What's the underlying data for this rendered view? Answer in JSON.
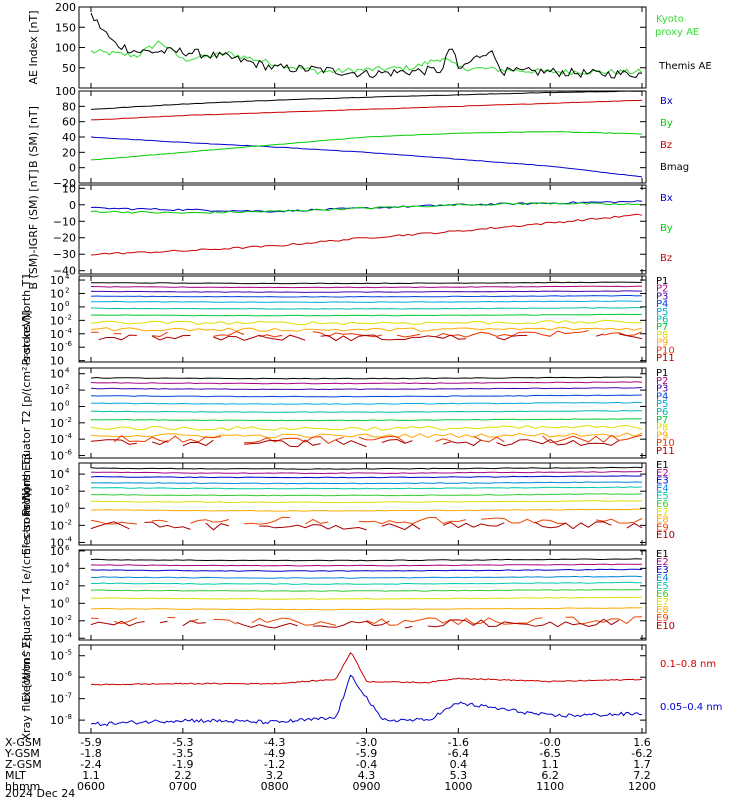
{
  "colors": {
    "black": "#000000",
    "red": "#cc0000",
    "green": "#00cc00",
    "blue": "#0000cc",
    "kyoto": "#33dd33",
    "channels11": [
      "#000000",
      "#aa0088",
      "#4400aa",
      "#0044dd",
      "#00aadd",
      "#00bbaa",
      "#00cc33",
      "#dddd00",
      "#ffaa00",
      "#ee3300",
      "#aa0000"
    ],
    "channels10": [
      "#000000",
      "#aa0088",
      "#0000cc",
      "#0088dd",
      "#00ccaa",
      "#33cc33",
      "#dddd00",
      "#ffaa00",
      "#ee4400",
      "#aa0000"
    ]
  },
  "panels": {
    "ae": {
      "ylabel": "AE Index [nT]",
      "ticks": [
        "200",
        "150",
        "100",
        "50"
      ],
      "legend": [
        "Kyoto proxy AE",
        "Themis AE"
      ]
    },
    "b": {
      "ylabel": "B (SM) [nT]",
      "ticks": [
        "100",
        "80",
        "60",
        "40",
        "20",
        "0",
        "−20"
      ],
      "legend": [
        "Bx",
        "By",
        "Bz",
        "Bmag"
      ]
    },
    "db": {
      "ylabel": "B (SM)-IGRF (SM) [nT]",
      "ticks": [
        "10",
        "0",
        "−10",
        "−20",
        "−30",
        "−40"
      ],
      "legend": [
        "Bx",
        "By",
        "Bz"
      ]
    },
    "p1": {
      "ylabel": "Protons North T1",
      "ticks": [
        "10",
        "10",
        "10",
        "10",
        "10",
        "10",
        "10"
      ],
      "exps": [
        "4",
        "2",
        "0",
        "-2",
        "-4",
        "-6",
        ""
      ],
      "legend": [
        "P1",
        "P2",
        "P3",
        "P4",
        "P5",
        "P6",
        "P7",
        "P8",
        "P9",
        "P10",
        "P11"
      ]
    },
    "p2": {
      "ylabel": "Protons Equator T2 [p/(cm²-s-sr-keV)]",
      "ticks": [
        "10",
        "10",
        "10",
        "10",
        "10",
        "10"
      ],
      "exps": [
        "4",
        "2",
        "0",
        "-2",
        "-4",
        "-6"
      ],
      "legend": [
        "P1",
        "P2",
        "P3",
        "P4",
        "P5",
        "P6",
        "P7",
        "P8",
        "P9",
        "P10",
        "P11"
      ]
    },
    "e1": {
      "ylabel": "Electrons North T3",
      "ticks": [
        "10",
        "10",
        "10",
        "10",
        "10"
      ],
      "exps": [
        "4",
        "2",
        "0",
        "-2",
        "-4"
      ],
      "legend": [
        "E1",
        "E2",
        "E3",
        "E4",
        "E5",
        "E6",
        "E7",
        "E8",
        "E9",
        "E10"
      ]
    },
    "e2": {
      "ylabel": "Electrons Equator T4 [e/(cm²-s-sr-keV)]",
      "ticks": [
        "10",
        "10",
        "10",
        "10",
        "10",
        "10"
      ],
      "exps": [
        "6",
        "4",
        "2",
        "0",
        "-2",
        "-4"
      ],
      "legend": [
        "E1",
        "E2",
        "E3",
        "E4",
        "E5",
        "E6",
        "E7",
        "E8",
        "E9",
        "E10"
      ]
    },
    "xray": {
      "ylabel": "Xray flux [W/m^2]",
      "ticks": [
        "10",
        "10",
        "10",
        "10"
      ],
      "exps": [
        "-5",
        "-6",
        "-7",
        "-8"
      ],
      "legend": [
        "0.1–0.8 nm",
        "0.05–0.4 nm"
      ]
    }
  },
  "orbit": {
    "row_labels": [
      "X-GSM",
      "Y-GSM",
      "Z-GSM",
      "MLT",
      "hhmm"
    ],
    "date": "2024 Dec 24",
    "columns": [
      {
        "x": "-5.9",
        "y": "-1.8",
        "z": "-2.4",
        "mlt": "1.1",
        "hhmm": "0600"
      },
      {
        "x": "-5.3",
        "y": "-3.5",
        "z": "-1.9",
        "mlt": "2.2",
        "hhmm": "0700"
      },
      {
        "x": "-4.3",
        "y": "-4.9",
        "z": "-1.2",
        "mlt": "3.2",
        "hhmm": "0800"
      },
      {
        "x": "-3.0",
        "y": "-5.9",
        "z": "-0.4",
        "mlt": "4.3",
        "hhmm": "0900"
      },
      {
        "x": "-1.6",
        "y": "-6.4",
        "z": "0.4",
        "mlt": "5.3",
        "hhmm": "1000"
      },
      {
        "x": "-0.0",
        "y": "-6.5",
        "z": "1.1",
        "mlt": "6.2",
        "hhmm": "1100"
      },
      {
        "x": "1.6",
        "y": "-6.2",
        "z": "1.7",
        "mlt": "7.2",
        "hhmm": "1200"
      }
    ]
  },
  "chart_data": [
    {
      "type": "line",
      "title": "",
      "xlabel": "hhmm",
      "ylabel": "AE Index [nT]",
      "x_range": [
        "0600",
        "1200"
      ],
      "ylim": [
        0,
        200
      ],
      "series": [
        {
          "name": "Kyoto proxy AE",
          "x": [
            "0600",
            "0630",
            "0645",
            "0700",
            "0730",
            "0800",
            "0830",
            "0900",
            "0930",
            "0950",
            "1000",
            "1030",
            "1100",
            "1130",
            "1200"
          ],
          "values": [
            90,
            80,
            115,
            70,
            85,
            60,
            40,
            45,
            50,
            75,
            50,
            45,
            40,
            40,
            40
          ]
        },
        {
          "name": "Themis AE",
          "x": [
            "0600",
            "0615",
            "0630",
            "0700",
            "0730",
            "0800",
            "0830",
            "0900",
            "0950",
            "0955",
            "1000",
            "1020",
            "1030",
            "1100",
            "1130",
            "1200"
          ],
          "values": [
            180,
            110,
            90,
            90,
            75,
            50,
            45,
            35,
            45,
            110,
            45,
            95,
            40,
            40,
            35,
            35
          ]
        }
      ]
    },
    {
      "type": "line",
      "ylabel": "B (SM) [nT]",
      "x_range": [
        "0600",
        "1200"
      ],
      "ylim": [
        -20,
        100
      ],
      "series": [
        {
          "name": "Bx",
          "x": [
            "0600",
            "0700",
            "0800",
            "0900",
            "1000",
            "1100",
            "1200"
          ],
          "values": [
            40,
            33,
            27,
            20,
            11,
            2,
            -12
          ]
        },
        {
          "name": "By",
          "x": [
            "0600",
            "0700",
            "0800",
            "0900",
            "1000",
            "1100",
            "1200"
          ],
          "values": [
            10,
            20,
            30,
            40,
            45,
            47,
            44
          ]
        },
        {
          "name": "Bz",
          "x": [
            "0600",
            "0700",
            "0800",
            "0900",
            "1000",
            "1100",
            "1200"
          ],
          "values": [
            62,
            68,
            72,
            76,
            80,
            84,
            88
          ]
        },
        {
          "name": "Bmag",
          "x": [
            "0600",
            "0700",
            "0800",
            "0900",
            "1000",
            "1100",
            "1200"
          ],
          "values": [
            76,
            83,
            88,
            92,
            95,
            98,
            100
          ]
        }
      ]
    },
    {
      "type": "line",
      "ylabel": "B (SM)-IGRF (SM) [nT]",
      "x_range": [
        "0600",
        "1200"
      ],
      "ylim": [
        -40,
        10
      ],
      "series": [
        {
          "name": "Bx",
          "x": [
            "0600",
            "0700",
            "0800",
            "0900",
            "1000",
            "1100",
            "1200"
          ],
          "values": [
            -2,
            -3,
            -4,
            -2,
            0,
            1,
            2
          ]
        },
        {
          "name": "By",
          "x": [
            "0600",
            "0700",
            "0800",
            "0900",
            "1000",
            "1100",
            "1200"
          ],
          "values": [
            -4,
            -5,
            -4,
            -2,
            0,
            1,
            0
          ]
        },
        {
          "name": "Bz",
          "x": [
            "0600",
            "0700",
            "0800",
            "0900",
            "1000",
            "1100",
            "1200"
          ],
          "values": [
            -30,
            -28,
            -25,
            -20,
            -16,
            -11,
            -6
          ]
        }
      ]
    },
    {
      "type": "line",
      "ylabel": "Protons North T1",
      "log_scale": true,
      "exp_range": [
        -6,
        4
      ],
      "series": [
        {
          "name": "P1",
          "level_exp": 3.6
        },
        {
          "name": "P2",
          "level_exp": 3.0
        },
        {
          "name": "P3",
          "level_exp": 2.3
        },
        {
          "name": "P4",
          "level_exp": 1.6
        },
        {
          "name": "P5",
          "level_exp": 0.8
        },
        {
          "name": "P6",
          "level_exp": -0.2
        },
        {
          "name": "P7",
          "level_exp": -1.2
        },
        {
          "name": "P8",
          "level_exp": -2.3
        },
        {
          "name": "P9",
          "level_exp": -3.3
        },
        {
          "name": "P10",
          "level_exp": -4.0
        },
        {
          "name": "P11",
          "level_exp": -4.5
        }
      ]
    },
    {
      "type": "line",
      "ylabel": "Protons Equator T2 [p/(cm²-s-sr-keV)]",
      "log_scale": true,
      "exp_range": [
        -6,
        4
      ],
      "series": [
        {
          "name": "P1",
          "level_exp": 3.5
        },
        {
          "name": "P2",
          "level_exp": 2.9
        },
        {
          "name": "P3",
          "level_exp": 2.2
        },
        {
          "name": "P4",
          "level_exp": 1.3
        },
        {
          "name": "P5",
          "level_exp": 0.4
        },
        {
          "name": "P6",
          "level_exp": -0.6
        },
        {
          "name": "P7",
          "level_exp": -1.6
        },
        {
          "name": "P8",
          "level_exp": -2.6
        },
        {
          "name": "P9",
          "level_exp": -3.5
        },
        {
          "name": "P10",
          "level_exp": -4.0
        },
        {
          "name": "P11",
          "level_exp": -4.4
        }
      ]
    },
    {
      "type": "line",
      "ylabel": "Electrons North T3",
      "log_scale": true,
      "exp_range": [
        -4,
        5
      ],
      "series": [
        {
          "name": "E1",
          "level_exp": 4.7
        },
        {
          "name": "E2",
          "level_exp": 4.2
        },
        {
          "name": "E3",
          "level_exp": 3.7
        },
        {
          "name": "E4",
          "level_exp": 3.0
        },
        {
          "name": "E5",
          "level_exp": 2.4
        },
        {
          "name": "E6",
          "level_exp": 1.6
        },
        {
          "name": "E7",
          "level_exp": 0.8
        },
        {
          "name": "E8",
          "level_exp": -0.2
        },
        {
          "name": "E9",
          "level_exp": -1.4
        },
        {
          "name": "E10",
          "level_exp": -2.0
        }
      ]
    },
    {
      "type": "line",
      "ylabel": "Electrons Equator T4 [e/(cm²-s-sr-keV)]",
      "log_scale": true,
      "exp_range": [
        -4,
        6
      ],
      "series": [
        {
          "name": "E1",
          "level_exp": 5.0
        },
        {
          "name": "E2",
          "level_exp": 4.4
        },
        {
          "name": "E3",
          "level_exp": 3.8
        },
        {
          "name": "E4",
          "level_exp": 3.0
        },
        {
          "name": "E5",
          "level_exp": 2.3
        },
        {
          "name": "E6",
          "level_exp": 1.5
        },
        {
          "name": "E7",
          "level_exp": 0.6
        },
        {
          "name": "E8",
          "level_exp": -0.6
        },
        {
          "name": "E9",
          "level_exp": -2.0
        },
        {
          "name": "E10",
          "level_exp": -2.3
        }
      ]
    },
    {
      "type": "line",
      "ylabel": "Xray flux [W/m^2]",
      "log_scale": true,
      "exp_range": [
        -8.5,
        -4.5
      ],
      "series": [
        {
          "name": "0.1–0.8 nm",
          "x": [
            "0600",
            "0700",
            "0800",
            "0840",
            "0850",
            "0900",
            "0940",
            "1000",
            "1100",
            "1200"
          ],
          "values_exp": [
            -6.35,
            -6.3,
            -6.3,
            -6.1,
            -4.8,
            -6.2,
            -6.25,
            -6.05,
            -6.2,
            -6.1
          ]
        },
        {
          "name": "0.05–0.4 nm",
          "x": [
            "0600",
            "0700",
            "0800",
            "0840",
            "0850",
            "0910",
            "0940",
            "1000",
            "1100",
            "1200"
          ],
          "values_exp": [
            -8.2,
            -8.0,
            -8.1,
            -7.9,
            -5.9,
            -8.0,
            -8.0,
            -7.2,
            -7.8,
            -7.7
          ]
        }
      ]
    }
  ]
}
